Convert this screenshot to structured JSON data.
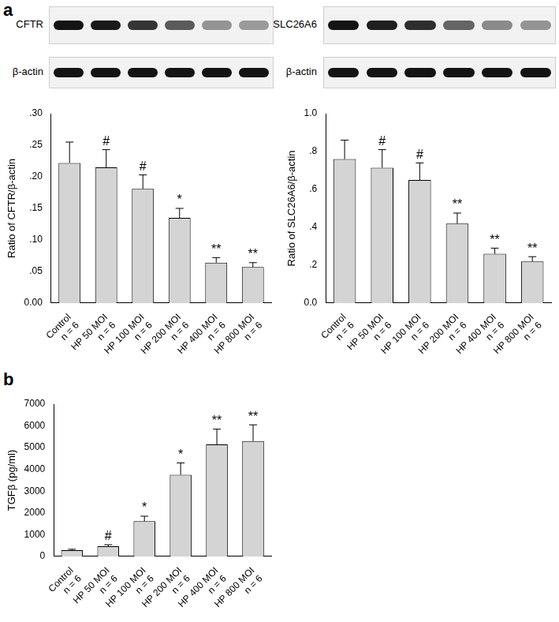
{
  "chart_data": [
    {
      "type": "bar",
      "panel_label": "a",
      "blot_labels": [
        "CFTR",
        "β-actin"
      ],
      "y_label": "Ratio of CFTR/β-actin",
      "categories": [
        [
          "Control",
          "n = 6"
        ],
        [
          "HP 50 MOI",
          "n = 6"
        ],
        [
          "HP 100 MOI",
          "n = 6"
        ],
        [
          "HP 200 MOI",
          "n = 6"
        ],
        [
          "HP 400 MOI",
          "n = 6"
        ],
        [
          "HP 800 MOI",
          "n = 6"
        ]
      ],
      "values": [
        0.222,
        0.215,
        0.181,
        0.135,
        0.064,
        0.057
      ],
      "errors": [
        0.033,
        0.028,
        0.022,
        0.015,
        0.008,
        0.007
      ],
      "significance": [
        null,
        "#",
        "#",
        "*",
        "**",
        "**"
      ],
      "color": "#d4d4d4",
      "grid": false,
      "ylim": [
        0,
        0.3
      ],
      "yticks": [
        {
          "value": 0,
          "label": "0.00"
        },
        {
          "value": 0.05,
          "label": ".05"
        },
        {
          "value": 0.1,
          "label": ".10"
        },
        {
          "value": 0.15,
          "label": ".15"
        },
        {
          "value": 0.2,
          "label": ".20"
        },
        {
          "value": 0.25,
          "label": ".25"
        },
        {
          "value": 0.3,
          "label": ".30"
        }
      ]
    },
    {
      "type": "bar",
      "blot_labels": [
        "SLC26A6",
        "β-actin"
      ],
      "y_label": "Ratio of SLC26A6/β-actin",
      "categories": [
        [
          "Control",
          "n = 6"
        ],
        [
          "HP 50 MOI",
          "n = 6"
        ],
        [
          "HP 100 MOI",
          "n = 6"
        ],
        [
          "HP 200 MOI",
          "n = 6"
        ],
        [
          "HP 400 MOI",
          "n = 6"
        ],
        [
          "HP 800 MOI",
          "n = 6"
        ]
      ],
      "values": [
        0.76,
        0.715,
        0.65,
        0.42,
        0.26,
        0.22
      ],
      "errors": [
        0.1,
        0.095,
        0.09,
        0.055,
        0.03,
        0.025
      ],
      "significance": [
        null,
        "#",
        "#",
        "**",
        "**",
        "**"
      ],
      "color": "#d4d4d4",
      "grid": false,
      "ylim": [
        0,
        1.0
      ],
      "yticks": [
        {
          "value": 0,
          "label": "0.0"
        },
        {
          "value": 0.2,
          "label": ".2"
        },
        {
          "value": 0.4,
          "label": ".4"
        },
        {
          "value": 0.6,
          "label": ".6"
        },
        {
          "value": 0.8,
          "label": ".8"
        },
        {
          "value": 1.0,
          "label": "1.0"
        }
      ]
    },
    {
      "type": "bar",
      "panel_label": "b",
      "y_label": "TGFβ (pg/ml)",
      "categories": [
        [
          "Control",
          "n = 6"
        ],
        [
          "HP 50 MOI",
          "n = 6"
        ],
        [
          "HP 100 MOI",
          "n = 6"
        ],
        [
          "HP 200 MOI",
          "n = 6"
        ],
        [
          "HP 400 MOI",
          "n = 6"
        ],
        [
          "HP 800 MOI",
          "n = 6"
        ]
      ],
      "values": [
        290,
        470,
        1620,
        3750,
        5150,
        5300
      ],
      "errors": [
        40,
        70,
        230,
        550,
        700,
        750
      ],
      "significance": [
        null,
        "#",
        "*",
        "*",
        "**",
        "**"
      ],
      "color": "#d4d4d4",
      "grid": false,
      "ylim": [
        0,
        7000
      ],
      "yticks": [
        0,
        1000,
        2000,
        3000,
        4000,
        5000,
        6000,
        7000
      ]
    }
  ]
}
